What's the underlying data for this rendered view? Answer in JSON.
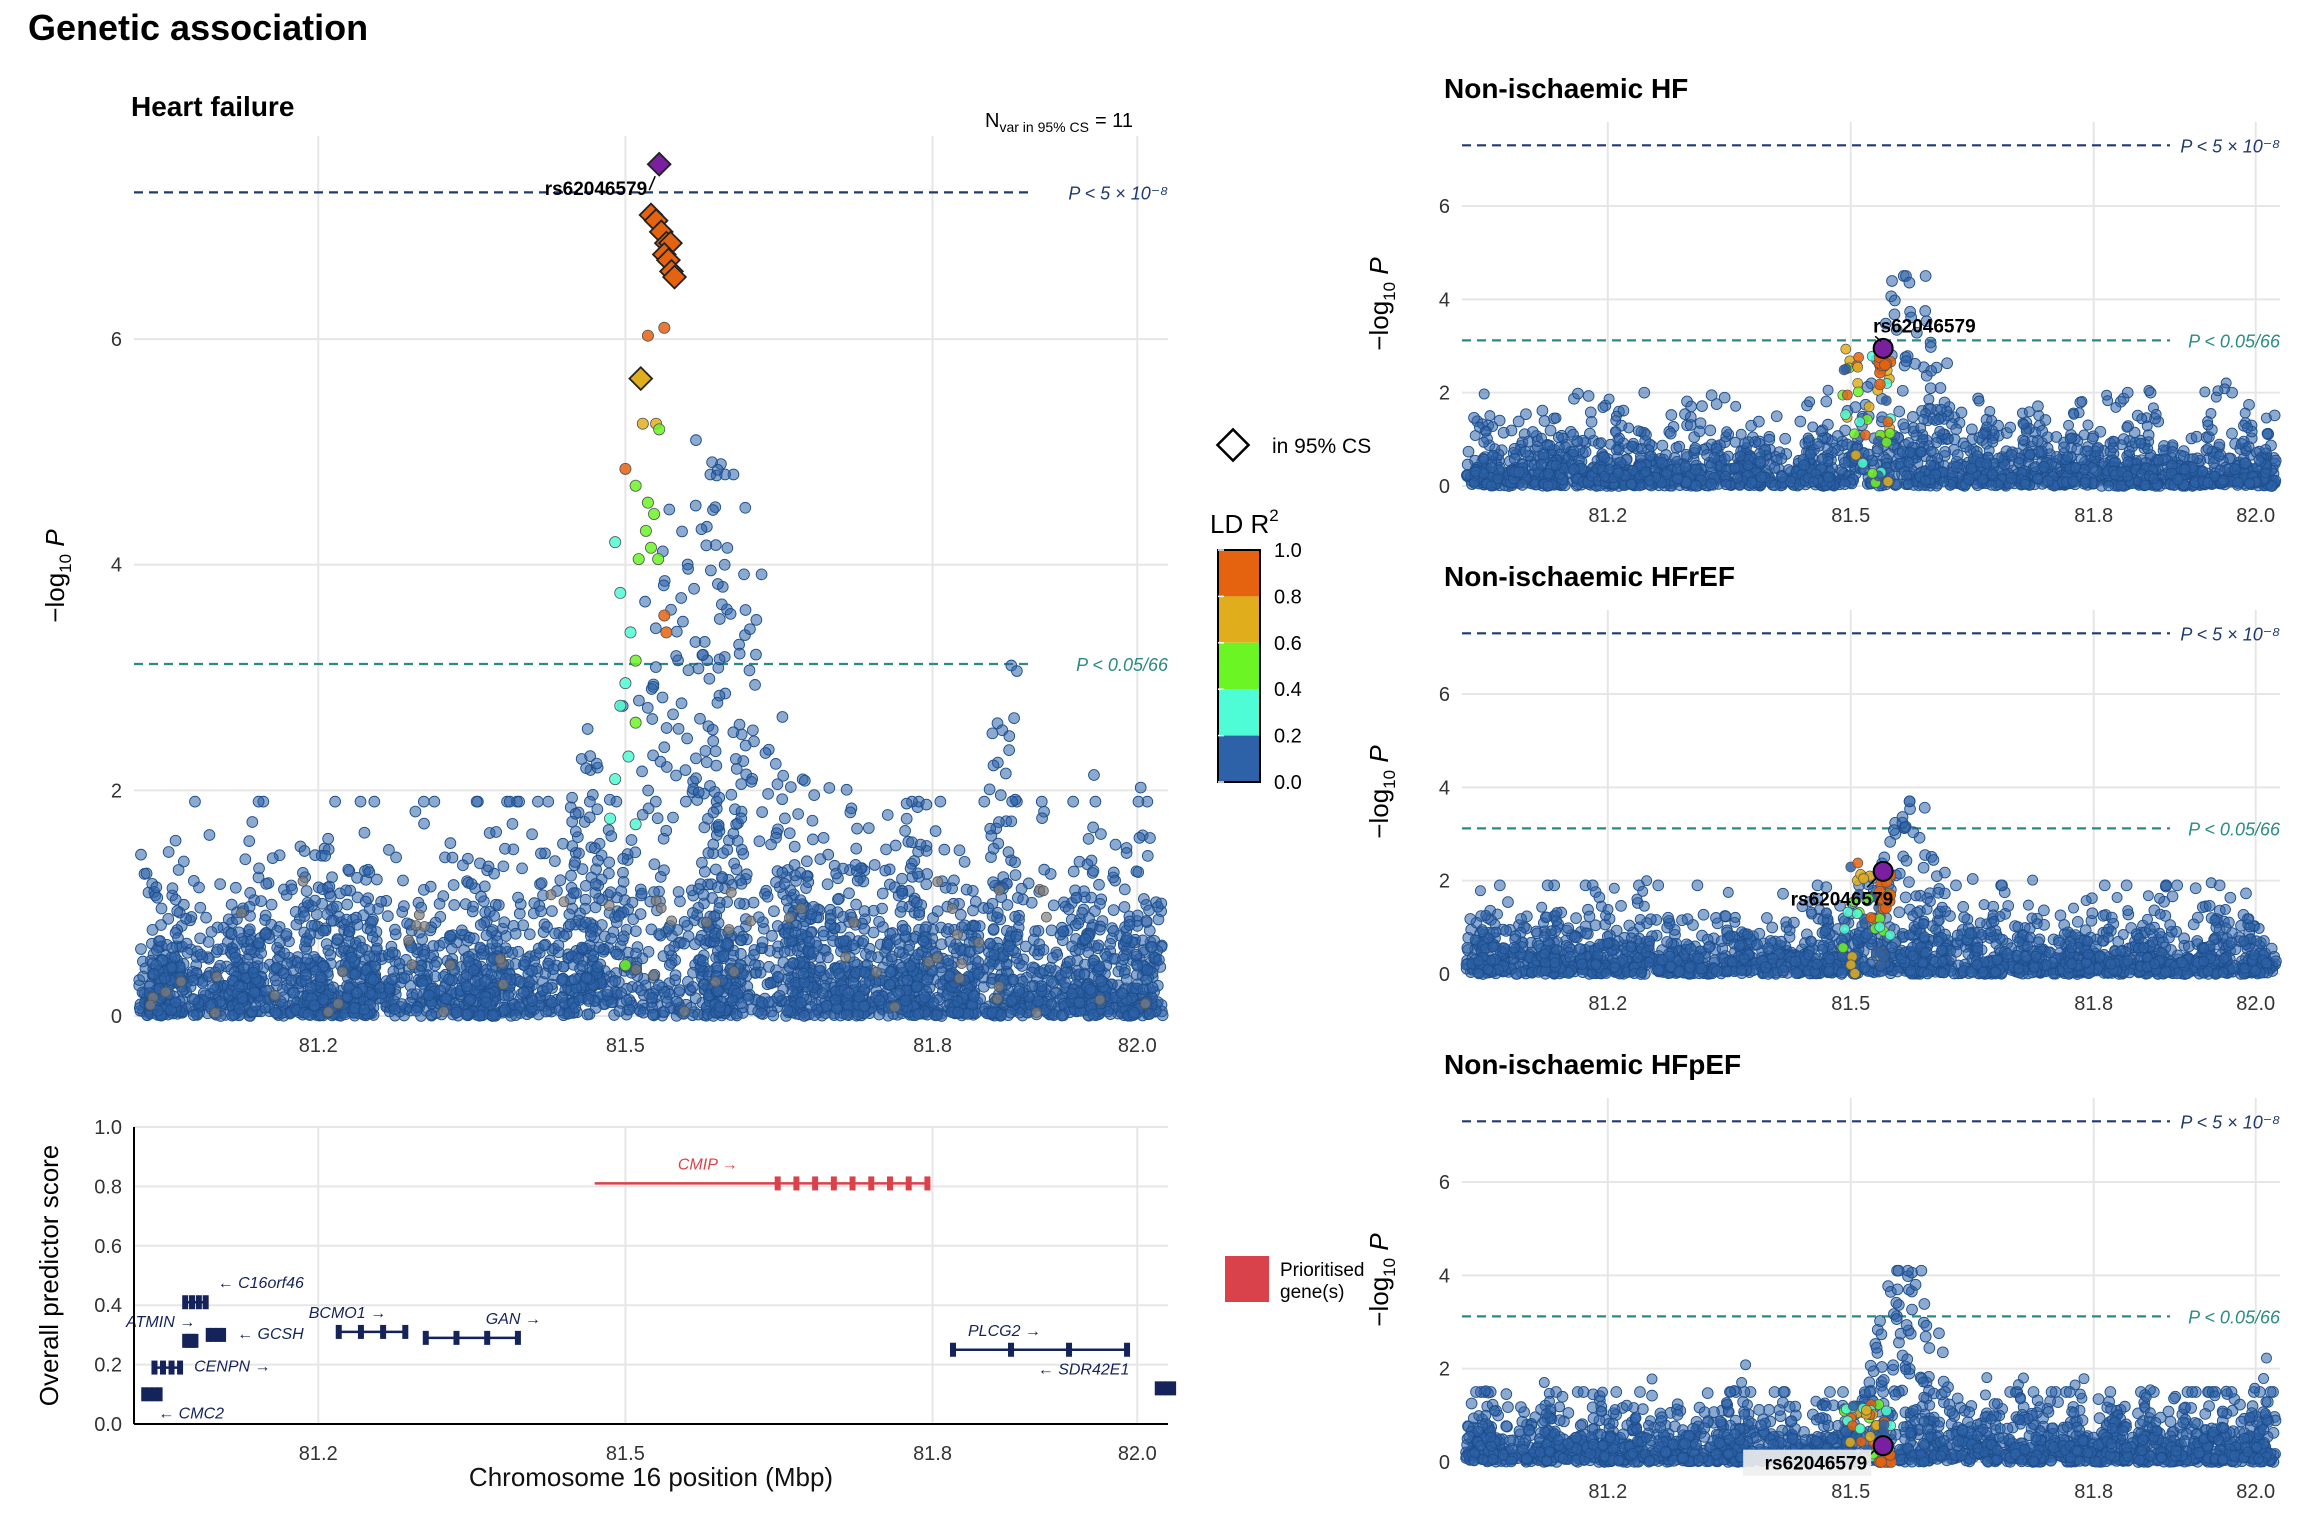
{
  "figure_title": "Genetic association",
  "colors": {
    "ld_0_2": "#2e62a8",
    "ld_2_4": "#4efcd5",
    "ld_4_6": "#6bf524",
    "ld_6_8": "#e0ae1c",
    "ld_8_10": "#e5620f",
    "lead": "#7a1fa0",
    "gene_prioritised": "#d9424a",
    "gene_other": "#14235a",
    "thr_gw": "#1f3a6e",
    "thr_bonf": "#2a8a85"
  },
  "thresholds": {
    "genome_wide": {
      "value": 7.3,
      "label": "P < 5 × 10⁻⁸"
    },
    "bonferroni": {
      "value": 3.12,
      "label": "P < 0.05/66"
    }
  },
  "lead_snp": "rs62046579",
  "n_var_label": "N",
  "n_var_sub": "var in 95% CS",
  "n_var_value": "= 11",
  "legend": {
    "cs_label": "in 95% CS",
    "ld_title": "LD R",
    "ld_title_sup": "2",
    "ld_ticks": [
      "1.0",
      "0.8",
      "0.6",
      "0.4",
      "0.2",
      "0.0"
    ],
    "gene_label_line1": "Prioritised",
    "gene_label_line2": "gene(s)"
  },
  "chart_data": [
    {
      "type": "scatter",
      "title": "Heart failure",
      "xlabel": "",
      "ylabel": "−log10 P",
      "xlim": [
        81.02,
        82.03
      ],
      "ylim": [
        0,
        7.8
      ],
      "xticks": [
        "81.2",
        "81.5",
        "81.8",
        "82.0"
      ],
      "yticks": [
        "0",
        "2",
        "4",
        "6"
      ],
      "lead": {
        "x": 81.533,
        "y": 7.55
      },
      "credible_set": [
        {
          "x": 81.533,
          "y": 7.55,
          "ld": 1.0
        },
        {
          "x": 81.525,
          "y": 7.1,
          "ld": 0.95
        },
        {
          "x": 81.53,
          "y": 7.05,
          "ld": 0.95
        },
        {
          "x": 81.535,
          "y": 6.95,
          "ld": 0.95
        },
        {
          "x": 81.54,
          "y": 6.85,
          "ld": 0.95
        },
        {
          "x": 81.544,
          "y": 6.85,
          "ld": 0.95
        },
        {
          "x": 81.538,
          "y": 6.75,
          "ld": 0.95
        },
        {
          "x": 81.542,
          "y": 6.7,
          "ld": 0.95
        },
        {
          "x": 81.545,
          "y": 6.6,
          "ld": 0.95
        },
        {
          "x": 81.548,
          "y": 6.55,
          "ld": 0.95
        },
        {
          "x": 81.515,
          "y": 5.65,
          "ld": 0.7
        }
      ],
      "highlights": [
        {
          "x": 81.522,
          "y": 6.03,
          "ld": 0.85
        },
        {
          "x": 81.538,
          "y": 6.1,
          "ld": 0.85
        },
        {
          "x": 81.5,
          "y": 4.85,
          "ld": 0.85
        },
        {
          "x": 81.53,
          "y": 5.25,
          "ld": 0.75
        },
        {
          "x": 81.533,
          "y": 5.2,
          "ld": 0.5
        },
        {
          "x": 81.517,
          "y": 5.25,
          "ld": 0.65
        },
        {
          "x": 81.51,
          "y": 4.7,
          "ld": 0.5
        },
        {
          "x": 81.522,
          "y": 4.55,
          "ld": 0.45
        },
        {
          "x": 81.528,
          "y": 4.45,
          "ld": 0.45
        },
        {
          "x": 81.52,
          "y": 4.3,
          "ld": 0.45
        },
        {
          "x": 81.525,
          "y": 4.15,
          "ld": 0.45
        },
        {
          "x": 81.532,
          "y": 4.05,
          "ld": 0.45
        },
        {
          "x": 81.513,
          "y": 4.05,
          "ld": 0.45
        },
        {
          "x": 81.49,
          "y": 4.2,
          "ld": 0.3
        },
        {
          "x": 81.495,
          "y": 3.75,
          "ld": 0.3
        },
        {
          "x": 81.538,
          "y": 3.55,
          "ld": 0.85
        },
        {
          "x": 81.54,
          "y": 3.4,
          "ld": 0.85
        },
        {
          "x": 81.505,
          "y": 3.4,
          "ld": 0.3
        },
        {
          "x": 81.51,
          "y": 3.15,
          "ld": 0.5
        },
        {
          "x": 81.5,
          "y": 2.95,
          "ld": 0.3
        },
        {
          "x": 81.495,
          "y": 2.75,
          "ld": 0.3
        },
        {
          "x": 81.51,
          "y": 2.6,
          "ld": 0.5
        },
        {
          "x": 81.503,
          "y": 2.3,
          "ld": 0.3
        },
        {
          "x": 81.49,
          "y": 2.1,
          "ld": 0.3
        },
        {
          "x": 81.51,
          "y": 1.7,
          "ld": 0.3
        },
        {
          "x": 81.485,
          "y": 1.75,
          "ld": 0.3
        },
        {
          "x": 81.5,
          "y": 0.45,
          "ld": 0.5
        }
      ],
      "background_note": "~8000 variants with LD < 0.2 spanning the region"
    },
    {
      "type": "bar",
      "title": "",
      "xlabel": "Chromosome 16 position (Mbp)",
      "ylabel": "Overall predictor score",
      "xlim": [
        81.02,
        82.03
      ],
      "ylim": [
        0,
        1.0
      ],
      "xticks": [
        "81.2",
        "81.5",
        "81.8",
        "82.0"
      ],
      "yticks": [
        "0.0",
        "0.2",
        "0.4",
        "0.6",
        "0.8",
        "1.0"
      ],
      "genes": [
        {
          "name": "CMIP →",
          "start": 81.47,
          "end": 81.795,
          "score": 0.81,
          "prioritised": true
        },
        {
          "name": "← C16orf46",
          "start": 81.07,
          "end": 81.09,
          "score": 0.41,
          "prioritised": false
        },
        {
          "name": "ATMIN →",
          "start": 81.07,
          "end": 81.08,
          "score": 0.28,
          "prioritised": false
        },
        {
          "name": "← GCSH",
          "start": 81.093,
          "end": 81.107,
          "score": 0.3,
          "prioritised": false
        },
        {
          "name": "CENPN →",
          "start": 81.04,
          "end": 81.065,
          "score": 0.19,
          "prioritised": false
        },
        {
          "name": "← CMC2",
          "start": 81.03,
          "end": 81.045,
          "score": 0.1,
          "prioritised": false
        },
        {
          "name": "BCMO1 →",
          "start": 81.22,
          "end": 81.285,
          "score": 0.31,
          "prioritised": false
        },
        {
          "name": "GAN →",
          "start": 81.305,
          "end": 81.395,
          "score": 0.29,
          "prioritised": false
        },
        {
          "name": "PLCG2 →",
          "start": 81.82,
          "end": 81.99,
          "score": 0.25,
          "prioritised": false
        },
        {
          "name": "← SDR42E1",
          "start": 82.02,
          "end": 82.035,
          "score": 0.12,
          "prioritised": false
        }
      ]
    },
    {
      "type": "scatter",
      "title": "Non-ischaemic HF",
      "ylabel": "−log10 P",
      "xlim": [
        81.02,
        82.03
      ],
      "ylim": [
        0,
        7.8
      ],
      "xticks": [
        "81.2",
        "81.5",
        "81.8",
        "82.0"
      ],
      "yticks": [
        "0",
        "2",
        "4",
        "6"
      ],
      "lead": {
        "x": 81.54,
        "y": 2.95
      },
      "top_value": 4.5
    },
    {
      "type": "scatter",
      "title": "Non-ischaemic HFrEF",
      "ylabel": "−log10 P",
      "xlim": [
        81.02,
        82.03
      ],
      "ylim": [
        0,
        7.8
      ],
      "xticks": [
        "81.2",
        "81.5",
        "81.8",
        "82.0"
      ],
      "yticks": [
        "0",
        "2",
        "4",
        "6"
      ],
      "lead": {
        "x": 81.54,
        "y": 2.2
      },
      "top_value": 3.7
    },
    {
      "type": "scatter",
      "title": "Non-ischaemic HFpEF",
      "ylabel": "−log10 P",
      "xlim": [
        81.02,
        82.03
      ],
      "ylim": [
        0,
        7.8
      ],
      "xticks": [
        "81.2",
        "81.5",
        "81.8",
        "82.0"
      ],
      "yticks": [
        "0",
        "2",
        "4",
        "6"
      ],
      "lead": {
        "x": 81.54,
        "y": 0.35
      },
      "top_value": 4.1
    }
  ]
}
